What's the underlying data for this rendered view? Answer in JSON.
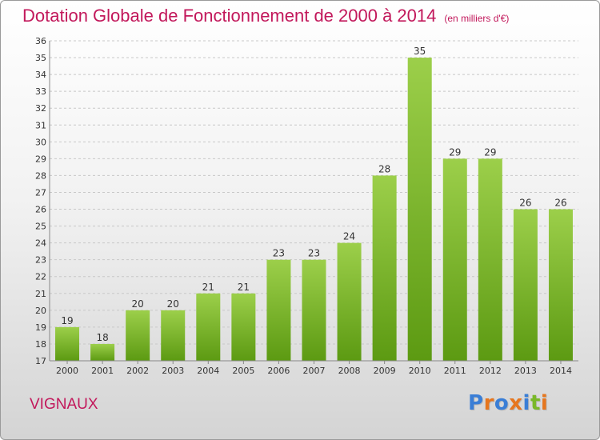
{
  "title": "Dotation Globale de Fonctionnement de 2000 à 2014",
  "unit_label": "(en milliers d'€)",
  "commune": "VIGNAUX",
  "logo_text": "Proxiti",
  "colors": {
    "title": "#c2185b",
    "bar_top": "#9ccf4a",
    "bar_bottom": "#5c9a12",
    "grid": "#c8c8c8",
    "logo": [
      "#3a7ed6",
      "#e6761e",
      "#3a7ed6",
      "#e6761e",
      "#3a7ed6",
      "#7ab829",
      "#e6761e"
    ]
  },
  "chart_data": {
    "type": "bar",
    "categories": [
      "2000",
      "2001",
      "2002",
      "2003",
      "2004",
      "2005",
      "2006",
      "2007",
      "2008",
      "2009",
      "2010",
      "2011",
      "2012",
      "2013",
      "2014"
    ],
    "values": [
      19,
      18,
      20,
      20,
      21,
      21,
      23,
      23,
      24,
      28,
      35,
      29,
      29,
      26,
      26
    ],
    "ylim": [
      17,
      36
    ],
    "yticks": [
      17,
      18,
      19,
      20,
      21,
      22,
      23,
      24,
      25,
      26,
      27,
      28,
      29,
      30,
      31,
      32,
      33,
      34,
      35,
      36
    ],
    "grid": true,
    "title": "Dotation Globale de Fonctionnement de 2000 à 2014",
    "xlabel": "",
    "ylabel": ""
  }
}
